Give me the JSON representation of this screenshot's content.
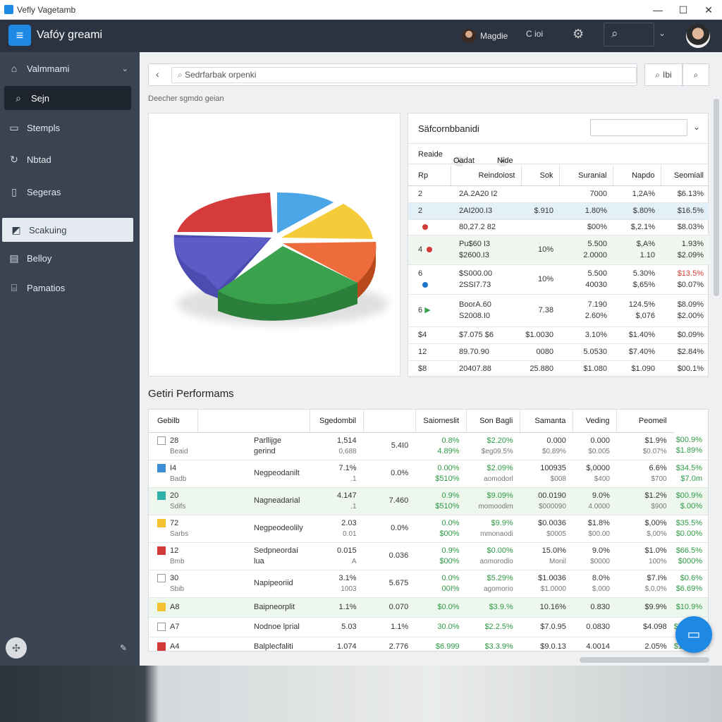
{
  "window": {
    "title": "Vefly Vagetamb",
    "min": "—",
    "max": "☐",
    "close": "✕"
  },
  "appbar": {
    "menu": "≡",
    "app_name": "Vafóy greami",
    "user": "Magdie",
    "sync": "C ioi",
    "gear": "⚙",
    "search": "⌕",
    "caret": "⌄"
  },
  "sidebar": {
    "items": [
      {
        "label": "Valmmami",
        "icon": "home-icon",
        "glyph": "⌂"
      },
      {
        "label": "Sejn",
        "icon": "search-icon",
        "glyph": "⌕"
      },
      {
        "label": "Stempls",
        "icon": "window-icon",
        "glyph": "▭"
      },
      {
        "label": "Nbtad",
        "icon": "refresh-icon",
        "glyph": "↻"
      },
      {
        "label": "Segeras",
        "icon": "page-icon",
        "glyph": "▯"
      },
      {
        "label": "Scakuing",
        "icon": "tag-icon",
        "glyph": "◩"
      },
      {
        "label": "Belloy",
        "icon": "calendar-icon",
        "glyph": "▤"
      },
      {
        "label": "Pamatios",
        "icon": "bank-icon",
        "glyph": "⌸"
      }
    ],
    "caret": "⌄",
    "footer_icon": "✣",
    "edit_icon": "✎"
  },
  "search": {
    "back": "‹",
    "placeholder": "Sedrfarbak orpenki",
    "btn1_label": "Ibi",
    "btn_icon": "⌕"
  },
  "subtitle": "Deecher sgmdo geian",
  "pie": {
    "colors": {
      "red": "#d63b3b",
      "blue": "#4aa6e6",
      "yellow": "#f4cc3a",
      "orange": "#ee6b3b",
      "green": "#3aa14e",
      "purple": "#5b5cc6"
    }
  },
  "side_table": {
    "title": "Säfcornbbanidi",
    "filter": {
      "a": "Reaide",
      "b": "Oadat",
      "c": "Nide",
      "pill": "•"
    },
    "headers": [
      "Rp",
      "Reindoiost",
      "Sok",
      "Suranial",
      "Napdo",
      "Seomiall"
    ],
    "rows": [
      {
        "c0": "2",
        "c1": "2A.2A20 I2",
        "c2": "",
        "c3": "7000",
        "c4": "1,2A%",
        "c5": "$6.13%"
      },
      {
        "c0": "2",
        "c1": "2AI200.I3",
        "c2": "$.910",
        "c3": "1.80%",
        "c4": "$.80%",
        "c5": "$16.5%"
      },
      {
        "c0": "",
        "c1": "80,27.2 82",
        "c2": "",
        "c3": "$00%",
        "c4": "$,2.1%",
        "c5": "$8.03%"
      },
      {
        "c0": "4",
        "c1": "Pu$60 I3",
        "c2": "10%",
        "c3": "5.500",
        "c4": "$,A%",
        "c5": "1.93%"
      },
      {
        "c0": "",
        "c1": "$2600.I3",
        "c2": "",
        "c3": "2.0000",
        "c4": "1.10",
        "c5": "$2.09%"
      },
      {
        "c0": "6",
        "c1": "$S000.00",
        "c2": "10%",
        "c3": "5.500",
        "c4": "5.30%",
        "c5": "$13.5%"
      },
      {
        "c0": "6",
        "c1": "2SSI7.73",
        "c2": "",
        "c3": "40030",
        "c4": "$,65%",
        "c5": "$0.07%"
      },
      {
        "c0": "6",
        "c1": "BoorA.60",
        "c2": "7.38",
        "c3": "7.190",
        "c4": "124.5%",
        "c5": "$8.09%"
      },
      {
        "c0": "",
        "c1": "S2008.I0",
        "c2": "",
        "c3": "2.60%",
        "c4": "$,076",
        "c5": "$2.00%"
      },
      {
        "c0": "$4",
        "c1": "$7.075 $6",
        "c2": "$1.0030",
        "c3": "3.10%",
        "c4": "$1.40%",
        "c5": "$0.09%"
      },
      {
        "c0": "12",
        "c1": "89.70.90",
        "c2": "0080",
        "c3": "5.0530",
        "c4": "$7.40%",
        "c5": "$2.84%"
      },
      {
        "c0": "$8",
        "c1": "20407.88",
        "c2": "25.880",
        "c3": "$1.080",
        "c4": "$1.090",
        "c5": "$00.1%"
      }
    ]
  },
  "section_title": "Getiri Performams",
  "perf": {
    "headers": [
      "Gebilb",
      "",
      "Sgedombil",
      "",
      "Saiomeslit",
      "Son Bagli",
      "Samanta",
      "Veding",
      "Peomeil"
    ],
    "rows": [
      {
        "code": "28",
        "sub": "Beaid",
        "name": "Parllijge gerind",
        "color": "",
        "v1": "1,514",
        "v1b": "0,688",
        "v2": "5.4I0",
        "v3": "0.8%",
        "v3b": "4.89%",
        "v4": "$2.20%",
        "v4b": "$eg09.5%",
        "v5": "0.000",
        "v5b": "$0.89%",
        "v6": "0.000",
        "v6b": "$0.005",
        "v7": "$1.9%",
        "v7b": "$0.07%",
        "v8": "$00.9%",
        "v8b": "$1.89%"
      },
      {
        "code": "I4",
        "sub": "Badb",
        "name": "Negpeodanilt",
        "color": "#3f8fd8",
        "v1": "7.1%",
        "v1b": ".1",
        "v2": "0.0%",
        "v3": "0.00%",
        "v3b": "$510%",
        "v4": "$2.09%",
        "v4b": "aomodorl",
        "v5": "100935",
        "v5b": "$008",
        "v6": "$,0000",
        "v6b": "$400",
        "v7": "6.6%",
        "v7b": "$700",
        "v8": "$34.5%",
        "v8b": "$7.0m"
      },
      {
        "code": "20",
        "sub": "Sdifs",
        "name": "Nagneadarial",
        "color": "#2fb0a8",
        "v1": "4.147",
        "v1b": ".1",
        "v2": "7.460",
        "v3": "0.9%",
        "v3b": "$510%",
        "v4": "$9.09%",
        "v4b": "momoodim",
        "v5": "00.0190",
        "v5b": "$000090",
        "v6": "9.0%",
        "v6b": "4.0000",
        "v7": "$1.2%",
        "v7b": "$900",
        "v8": "$00.9%",
        "v8b": "$.00%"
      },
      {
        "code": "72",
        "sub": "Sarbs",
        "name": "Negpeodeolily",
        "color": "#f2c230",
        "v1": "2.03",
        "v1b": "0.01",
        "v2": "0.0%",
        "v3": "0.0%",
        "v3b": "$00%",
        "v4": "$9.9%",
        "v4b": "mmonaodi",
        "v5": "$0.0036",
        "v5b": "$0005",
        "v6": "$1.8%",
        "v6b": "$00.00",
        "v7": "$,00%",
        "v7b": "$,00%",
        "v8": "$35.5%",
        "v8b": "$0.00%"
      },
      {
        "code": "12",
        "sub": "Bmb",
        "name": "Sedpneordaí lua",
        "color": "#d23a3a",
        "v1": "0.015",
        "v1b": "A",
        "v2": "0.036",
        "v3": "0.9%",
        "v3b": "$00%",
        "v4": "$0.00%",
        "v4b": "aomorodlo",
        "v5": "15.0I%",
        "v5b": "Monil",
        "v6": "9.0%",
        "v6b": "$0000",
        "v7": "$1.0%",
        "v7b": "100%",
        "v8": "$66.5%",
        "v8b": "$000%"
      },
      {
        "code": "30",
        "sub": "Sbib",
        "name": "Napipeoriid",
        "color": "",
        "v1": "3.1%",
        "v1b": "1003",
        "v2": "5.675",
        "v3": "0.0%",
        "v3b": "00I%",
        "v4": "$5.29%",
        "v4b": "agomorio",
        "v5": "$1.0036",
        "v5b": "$1.0000",
        "v6": "8.0%",
        "v6b": "$,000",
        "v7": "$7.I%",
        "v7b": "$,0,0%",
        "v8": "$0.6%",
        "v8b": "$6.69%"
      },
      {
        "code": "A8",
        "sub": "",
        "name": "Baipneorplit",
        "color": "#f2c230",
        "v1": "1.1%",
        "v1b": "",
        "v2": "0.070",
        "v3": "$0.0%",
        "v3b": "",
        "v4": "$3.9.%",
        "v4b": "",
        "v5": "10.16%",
        "v5b": "",
        "v6": "0.830",
        "v6b": "",
        "v7": "$9.9%",
        "v7b": "",
        "v8": "$10.9%",
        "v8b": ""
      },
      {
        "code": "A7",
        "sub": "",
        "name": "Nodnoe lprial",
        "color": "",
        "v1": "5.03",
        "v1b": "",
        "v2": "1.1%",
        "v3": "30.0%",
        "v3b": "",
        "v4": "$2.2.5%",
        "v4b": "",
        "v5": "$7.0.95",
        "v5b": "",
        "v6": "0.0830",
        "v6b": "",
        "v7": "$4.098",
        "v7b": "",
        "v8": "$7.,00%",
        "v8b": ""
      },
      {
        "code": "A4",
        "sub": "",
        "name": "Balplecfaliti",
        "color": "#d23a3a",
        "v1": "1.074",
        "v1b": "",
        "v2": "2.776",
        "v3": "$6.999",
        "v3b": "",
        "v4": "$3.3.9%",
        "v4b": "",
        "v5": "$9.0.13",
        "v5b": "",
        "v6": "4.0014",
        "v6b": "",
        "v7": "2.05%",
        "v7b": "",
        "v8": "$1.7.9%",
        "v8b": ""
      }
    ]
  },
  "fab_icon": "▭"
}
